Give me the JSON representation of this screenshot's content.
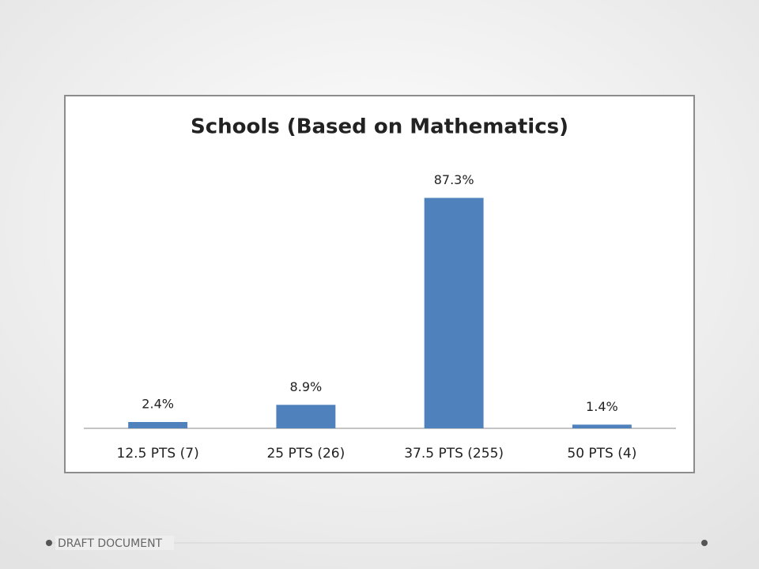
{
  "chart_data": {
    "type": "bar",
    "title": "Schools (Based on Mathematics)",
    "categories": [
      "12.5 PTS (7)",
      "25 PTS (26)",
      "37.5 PTS (255)",
      "50 PTS (4)"
    ],
    "values": [
      2.4,
      8.9,
      87.3,
      1.4
    ],
    "value_labels": [
      "2.4%",
      "8.9%",
      "87.3%",
      "1.4%"
    ],
    "color": "#4f81bd",
    "ylim": [
      0,
      100
    ]
  },
  "footer": "DRAFT DOCUMENT"
}
